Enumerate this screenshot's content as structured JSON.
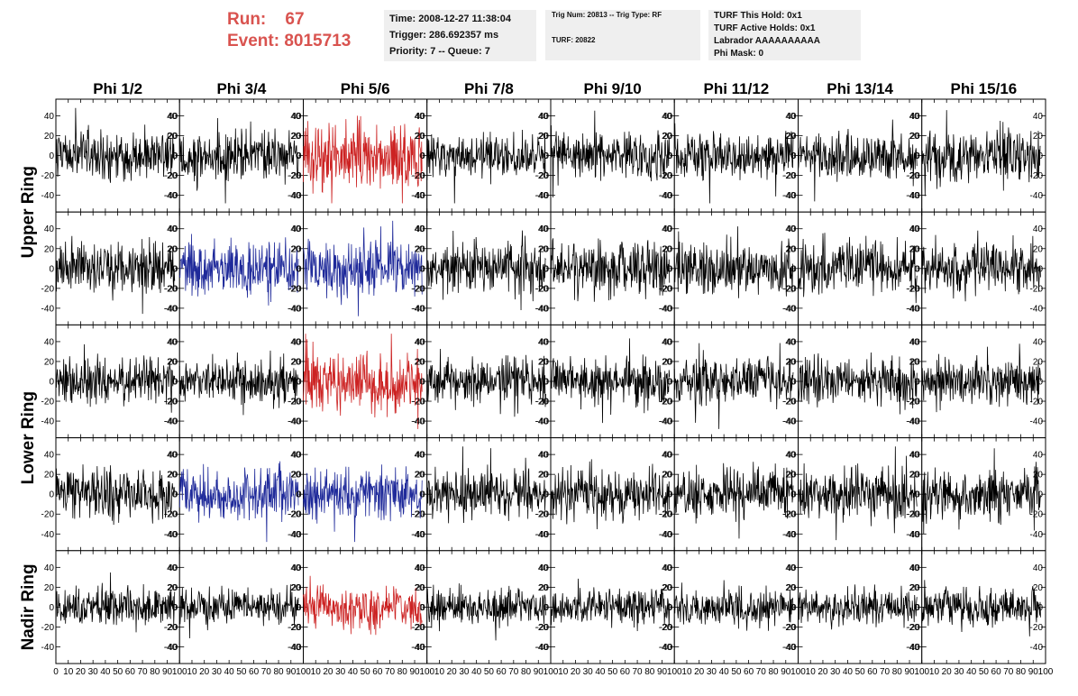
{
  "header": {
    "run_label": "Run:",
    "run_value": "67",
    "event_label": "Event:",
    "event_value": "8015713",
    "time_lines": [
      "Time: 2008-12-27 11:38:04",
      "Trigger: 286.692357 ms",
      "Priority: 7 -- Queue: 7"
    ],
    "trig_lines": [
      "Trig Num: 20813 -- Trig Type: RF",
      "TURF: 20822"
    ],
    "turf_lines": [
      "TURF This Hold: 0x1",
      "TURF Active Holds: 0x1",
      "Labrador AAAAAAAAAA",
      "Phi Mask: 0"
    ]
  },
  "columns": [
    "Phi 1/2",
    "Phi 3/4",
    "Phi 5/6",
    "Phi 7/8",
    "Phi 9/10",
    "Phi 11/12",
    "Phi 13/14",
    "Phi 15/16"
  ],
  "ring_labels": [
    {
      "label": "Upper Ring",
      "rows": [
        0,
        1
      ]
    },
    {
      "label": "Lower Ring",
      "rows": [
        2,
        3
      ]
    },
    {
      "label": "Nadir Ring",
      "rows": [
        4,
        4
      ]
    }
  ],
  "colors": {
    "default": "#000000",
    "red": "#cc2222",
    "blue": "#1f2a9a",
    "header_red": "#d9534f"
  },
  "chart_data": {
    "type": "line",
    "description_axes": "waveform grid, 5 rows x 8 columns",
    "xlim": [
      0,
      100
    ],
    "ylim": [
      -55,
      55
    ],
    "xticks": [
      0,
      10,
      20,
      30,
      40,
      50,
      60,
      70,
      80,
      90,
      100
    ],
    "yticks": [
      -40,
      -20,
      0,
      20,
      40
    ],
    "samples_per_trace": 260,
    "x_max_sample": 96,
    "trace_colors": [
      [
        "default",
        "default",
        "red",
        "default",
        "default",
        "default",
        "default",
        "default"
      ],
      [
        "default",
        "blue",
        "blue",
        "default",
        "default",
        "default",
        "default",
        "default"
      ],
      [
        "default",
        "default",
        "red",
        "default",
        "default",
        "default",
        "default",
        "default"
      ],
      [
        "default",
        "blue",
        "blue",
        "default",
        "default",
        "default",
        "default",
        "default"
      ],
      [
        "default",
        "default",
        "red",
        "default",
        "default",
        "default",
        "default",
        "default"
      ]
    ],
    "trace_amplitude": [
      [
        14,
        16,
        20,
        14,
        14,
        14,
        15,
        15
      ],
      [
        16,
        16,
        17,
        16,
        17,
        16,
        16,
        16
      ],
      [
        14,
        14,
        20,
        14,
        14,
        15,
        15,
        14
      ],
      [
        15,
        16,
        16,
        15,
        15,
        15,
        15,
        15
      ],
      [
        12,
        11,
        13,
        11,
        11,
        11,
        11,
        12
      ]
    ]
  }
}
